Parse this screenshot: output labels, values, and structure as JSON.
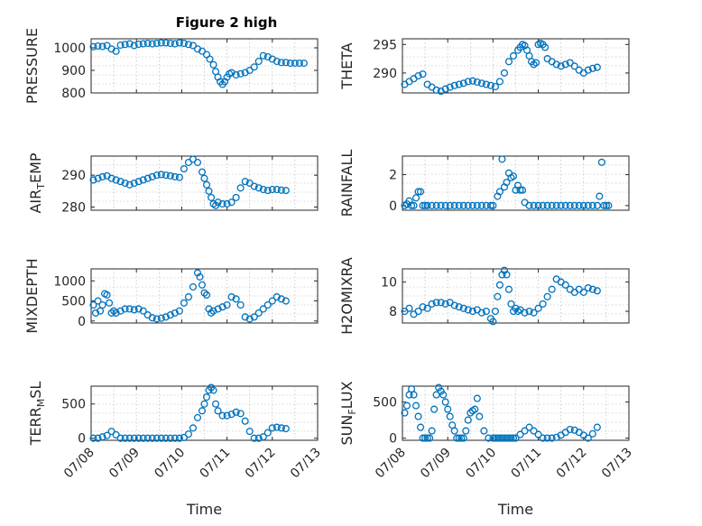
{
  "figure_title": "Figure 2 high",
  "colors": {
    "marker": "#0072bd",
    "axis": "#262626",
    "grid": "#b0b0b0"
  },
  "chart_data": [
    {
      "type": "scatter",
      "ylabel": "PRESSURE",
      "ylim": [
        800,
        1040
      ],
      "yticks": [
        800,
        900,
        1000
      ],
      "xticks": [
        "",
        "",
        "",
        "",
        "",
        ""
      ],
      "xlabel": "",
      "x": [
        0.05,
        0.15,
        0.25,
        0.35,
        0.45,
        0.55,
        0.65,
        0.75,
        0.85,
        0.95,
        1.05,
        1.15,
        1.25,
        1.35,
        1.45,
        1.55,
        1.65,
        1.75,
        1.85,
        1.95,
        2.05,
        2.15,
        2.25,
        2.35,
        2.45,
        2.55,
        2.62,
        2.7,
        2.75,
        2.8,
        2.85,
        2.9,
        2.95,
        3.0,
        3.05,
        3.1,
        3.2,
        3.3,
        3.4,
        3.5,
        3.6,
        3.7,
        3.8,
        3.9,
        4.0,
        4.1,
        4.2,
        4.3,
        4.4,
        4.5,
        4.6,
        4.7
      ],
      "y": [
        1005,
        1008,
        1006,
        1010,
        995,
        985,
        1012,
        1015,
        1018,
        1010,
        1016,
        1018,
        1020,
        1018,
        1020,
        1022,
        1022,
        1020,
        1018,
        1022,
        1020,
        1015,
        1010,
        995,
        985,
        970,
        950,
        925,
        895,
        870,
        850,
        838,
        850,
        870,
        885,
        890,
        880,
        885,
        890,
        900,
        915,
        940,
        965,
        960,
        950,
        940,
        935,
        935,
        932,
        932,
        932,
        932
      ]
    },
    {
      "type": "scatter",
      "ylabel": "THETA",
      "ylim": [
        286.5,
        296
      ],
      "yticks": [
        290,
        295
      ],
      "xticks": [
        "",
        "",
        "",
        "",
        "",
        ""
      ],
      "xlabel": "",
      "x": [
        0.05,
        0.15,
        0.25,
        0.35,
        0.45,
        0.55,
        0.65,
        0.75,
        0.85,
        0.95,
        1.05,
        1.15,
        1.25,
        1.35,
        1.45,
        1.55,
        1.65,
        1.75,
        1.85,
        1.95,
        2.05,
        2.15,
        2.25,
        2.35,
        2.45,
        2.55,
        2.6,
        2.65,
        2.7,
        2.75,
        2.8,
        2.85,
        2.9,
        2.95,
        3.0,
        3.05,
        3.1,
        3.15,
        3.2,
        3.3,
        3.4,
        3.5,
        3.6,
        3.7,
        3.8,
        3.9,
        4.0,
        4.1,
        4.2,
        4.3
      ],
      "y": [
        288,
        288.5,
        289,
        289.5,
        289.8,
        288,
        287.5,
        287,
        286.8,
        287.2,
        287.5,
        287.8,
        288,
        288.2,
        288.5,
        288.6,
        288.4,
        288.2,
        288,
        287.8,
        287.6,
        288.5,
        290,
        292,
        293,
        294,
        294.5,
        295,
        294.8,
        294,
        293,
        292,
        291.5,
        291.8,
        295,
        295.2,
        295,
        294.5,
        292.5,
        292,
        291.5,
        291.2,
        291.5,
        291.8,
        291.2,
        290.5,
        290,
        290.5,
        290.8,
        291
      ]
    },
    {
      "type": "scatter",
      "ylabel": "AIR_TEMP",
      "ylim": [
        279,
        296
      ],
      "yticks": [
        280,
        290
      ],
      "xticks": [
        "",
        "",
        "",
        "",
        "",
        ""
      ],
      "xlabel": "",
      "x": [
        0.05,
        0.15,
        0.25,
        0.35,
        0.45,
        0.55,
        0.65,
        0.75,
        0.85,
        0.95,
        1.05,
        1.15,
        1.25,
        1.35,
        1.45,
        1.55,
        1.65,
        1.75,
        1.85,
        1.95,
        2.05,
        2.15,
        2.25,
        2.35,
        2.45,
        2.5,
        2.55,
        2.6,
        2.65,
        2.7,
        2.75,
        2.8,
        2.9,
        3.0,
        3.1,
        3.2,
        3.3,
        3.4,
        3.5,
        3.6,
        3.7,
        3.8,
        3.9,
        4.0,
        4.1,
        4.2,
        4.3
      ],
      "y": [
        288.5,
        289,
        289.5,
        289.8,
        289,
        288.5,
        288,
        287.5,
        287,
        287.5,
        288,
        288.5,
        289,
        289.5,
        290,
        290.2,
        290,
        289.8,
        289.5,
        289.3,
        292,
        294,
        295,
        294,
        291,
        289,
        287,
        285,
        283,
        281,
        280.5,
        281.5,
        281,
        281,
        281.5,
        283,
        286,
        288,
        287.5,
        286.5,
        286,
        285.5,
        285.2,
        285.5,
        285.5,
        285.3,
        285.2
      ]
    },
    {
      "type": "scatter",
      "ylabel": "RAINFALL",
      "ylim": [
        -0.3,
        3.2
      ],
      "yticks": [
        0,
        2
      ],
      "xticks": [
        "",
        "",
        "",
        "",
        "",
        ""
      ],
      "xlabel": "",
      "x": [
        0.05,
        0.1,
        0.15,
        0.2,
        0.25,
        0.3,
        0.35,
        0.4,
        0.45,
        0.5,
        0.55,
        0.65,
        0.75,
        0.85,
        0.95,
        1.05,
        1.15,
        1.25,
        1.35,
        1.45,
        1.55,
        1.65,
        1.75,
        1.85,
        1.95,
        2.0,
        2.1,
        2.15,
        2.2,
        2.25,
        2.3,
        2.35,
        2.4,
        2.45,
        2.5,
        2.55,
        2.6,
        2.65,
        2.7,
        2.8,
        2.9,
        3.0,
        3.1,
        3.2,
        3.3,
        3.4,
        3.5,
        3.6,
        3.7,
        3.8,
        3.9,
        4.0,
        4.1,
        4.2,
        4.3,
        4.35,
        4.4,
        4.45,
        4.5,
        4.55
      ],
      "y": [
        0,
        0.1,
        0.3,
        0,
        0,
        0.5,
        0.9,
        0.9,
        0,
        0,
        0,
        0,
        0,
        0,
        0,
        0,
        0,
        0,
        0,
        0,
        0,
        0,
        0,
        0,
        0,
        0,
        0.6,
        0.9,
        3.0,
        1.2,
        1.5,
        2.1,
        1.8,
        1.9,
        1.0,
        1.3,
        1.0,
        1.0,
        0.2,
        0,
        0,
        0,
        0,
        0,
        0,
        0,
        0,
        0,
        0,
        0,
        0,
        0,
        0,
        0,
        0,
        0.6,
        2.8,
        0,
        0,
        0
      ]
    },
    {
      "type": "scatter",
      "ylabel": "MIXDEPTH",
      "ylim": [
        -50,
        1300
      ],
      "yticks": [
        0,
        500,
        1000
      ],
      "xticks": [
        "",
        "",
        "",
        "",
        "",
        ""
      ],
      "xlabel": "",
      "x": [
        0.05,
        0.1,
        0.15,
        0.2,
        0.25,
        0.3,
        0.35,
        0.4,
        0.45,
        0.5,
        0.55,
        0.65,
        0.75,
        0.85,
        0.95,
        1.05,
        1.15,
        1.25,
        1.35,
        1.45,
        1.55,
        1.65,
        1.75,
        1.85,
        1.95,
        2.05,
        2.15,
        2.25,
        2.35,
        2.4,
        2.45,
        2.5,
        2.55,
        2.6,
        2.65,
        2.7,
        2.8,
        2.9,
        3.0,
        3.1,
        3.2,
        3.3,
        3.4,
        3.5,
        3.6,
        3.7,
        3.8,
        3.9,
        4.0,
        4.1,
        4.2,
        4.3
      ],
      "y": [
        400,
        200,
        500,
        250,
        400,
        680,
        650,
        450,
        200,
        250,
        200,
        250,
        300,
        300,
        280,
        300,
        250,
        150,
        80,
        50,
        70,
        100,
        150,
        200,
        250,
        450,
        600,
        850,
        1200,
        1100,
        900,
        700,
        650,
        300,
        200,
        250,
        300,
        350,
        400,
        600,
        550,
        400,
        100,
        50,
        100,
        200,
        300,
        400,
        500,
        600,
        550,
        500
      ]
    },
    {
      "type": "scatter",
      "ylabel": "H2OMIXRA",
      "ylim": [
        7.2,
        10.9
      ],
      "yticks": [
        8,
        10
      ],
      "xticks": [
        "",
        "",
        "",
        "",
        "",
        ""
      ],
      "xlabel": "",
      "x": [
        0.05,
        0.15,
        0.25,
        0.35,
        0.45,
        0.55,
        0.65,
        0.75,
        0.85,
        0.95,
        1.05,
        1.15,
        1.25,
        1.35,
        1.45,
        1.55,
        1.65,
        1.75,
        1.85,
        1.95,
        2.0,
        2.05,
        2.1,
        2.15,
        2.2,
        2.25,
        2.3,
        2.35,
        2.4,
        2.45,
        2.5,
        2.55,
        2.6,
        2.7,
        2.8,
        2.9,
        3.0,
        3.1,
        3.2,
        3.3,
        3.4,
        3.5,
        3.6,
        3.7,
        3.8,
        3.9,
        4.0,
        4.1,
        4.2,
        4.3
      ],
      "y": [
        8,
        8.2,
        7.8,
        8,
        8.3,
        8.2,
        8.5,
        8.6,
        8.6,
        8.5,
        8.6,
        8.4,
        8.3,
        8.2,
        8.1,
        8,
        8.1,
        7.9,
        8,
        7.5,
        7.3,
        8,
        9,
        9.8,
        10.5,
        10.8,
        10.5,
        9.5,
        8.5,
        8,
        8.2,
        8,
        8.1,
        7.9,
        8,
        7.9,
        8.2,
        8.5,
        9.0,
        9.5,
        10.2,
        10,
        9.8,
        9.5,
        9.3,
        9.5,
        9.3,
        9.6,
        9.5,
        9.4
      ]
    },
    {
      "type": "scatter",
      "ylabel": "TERR_MSL",
      "ylim": [
        -30,
        760
      ],
      "yticks": [
        0,
        500
      ],
      "xticks": [
        "07/08",
        "07/09",
        "07/10",
        "07/11",
        "07/12",
        "07/13"
      ],
      "xlabel": "Time",
      "x": [
        0.05,
        0.15,
        0.25,
        0.35,
        0.45,
        0.55,
        0.65,
        0.75,
        0.85,
        0.95,
        1.05,
        1.15,
        1.25,
        1.35,
        1.45,
        1.55,
        1.65,
        1.75,
        1.85,
        1.95,
        2.05,
        2.15,
        2.25,
        2.35,
        2.45,
        2.5,
        2.55,
        2.6,
        2.65,
        2.7,
        2.75,
        2.8,
        2.9,
        3.0,
        3.1,
        3.2,
        3.3,
        3.4,
        3.5,
        3.6,
        3.7,
        3.8,
        3.9,
        4.0,
        4.1,
        4.2,
        4.3
      ],
      "y": [
        0,
        0,
        20,
        40,
        100,
        50,
        0,
        0,
        0,
        0,
        0,
        0,
        0,
        0,
        0,
        0,
        0,
        0,
        0,
        0,
        10,
        60,
        150,
        300,
        400,
        500,
        600,
        700,
        740,
        700,
        500,
        400,
        330,
        330,
        350,
        380,
        360,
        250,
        100,
        0,
        0,
        20,
        80,
        150,
        160,
        150,
        140
      ]
    },
    {
      "type": "scatter",
      "ylabel": "SUN_FLUX",
      "ylim": [
        -30,
        720
      ],
      "yticks": [
        0,
        500
      ],
      "xticks": [
        "07/08",
        "07/09",
        "07/10",
        "07/11",
        "07/12",
        "07/13"
      ],
      "xlabel": "Time",
      "x": [
        0.05,
        0.1,
        0.15,
        0.2,
        0.25,
        0.3,
        0.35,
        0.4,
        0.45,
        0.5,
        0.55,
        0.6,
        0.65,
        0.7,
        0.75,
        0.8,
        0.85,
        0.9,
        0.95,
        1.0,
        1.05,
        1.1,
        1.15,
        1.2,
        1.25,
        1.3,
        1.35,
        1.4,
        1.45,
        1.5,
        1.55,
        1.6,
        1.65,
        1.7,
        1.8,
        1.9,
        2.0,
        2.05,
        2.1,
        2.15,
        2.2,
        2.25,
        2.3,
        2.35,
        2.4,
        2.45,
        2.5,
        2.6,
        2.7,
        2.8,
        2.9,
        3.0,
        3.1,
        3.2,
        3.3,
        3.4,
        3.5,
        3.6,
        3.7,
        3.8,
        3.9,
        4.0,
        4.1,
        4.2,
        4.3
      ],
      "y": [
        350,
        450,
        600,
        680,
        600,
        450,
        300,
        150,
        0,
        0,
        0,
        0,
        100,
        400,
        600,
        700,
        650,
        600,
        500,
        400,
        300,
        180,
        100,
        0,
        0,
        0,
        0,
        100,
        250,
        350,
        380,
        400,
        550,
        300,
        100,
        0,
        0,
        0,
        0,
        0,
        0,
        0,
        0,
        0,
        0,
        0,
        0,
        50,
        100,
        150,
        100,
        50,
        0,
        0,
        0,
        10,
        40,
        80,
        120,
        110,
        80,
        40,
        0,
        60,
        150
      ]
    }
  ]
}
